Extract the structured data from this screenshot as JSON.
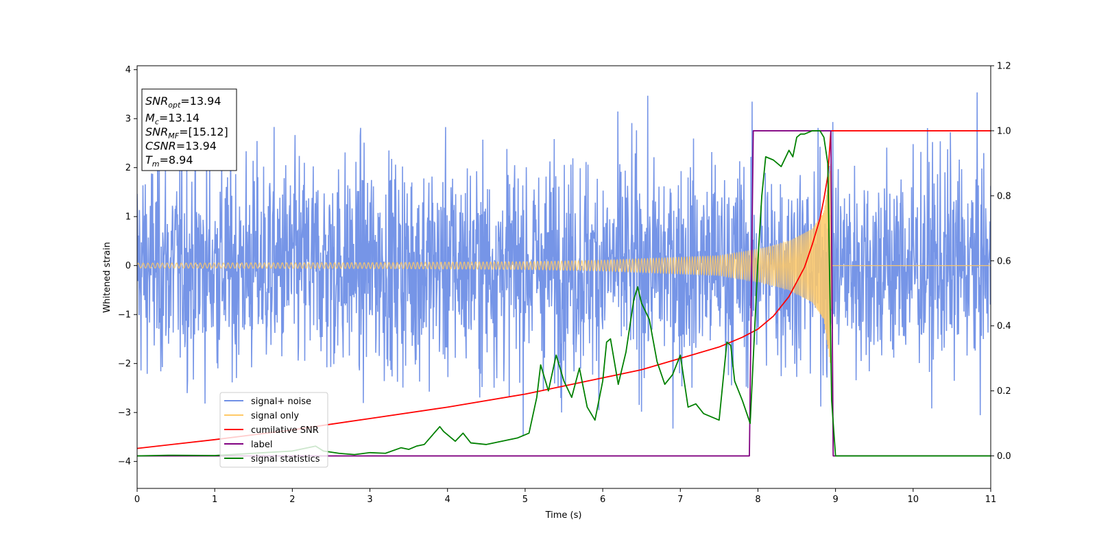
{
  "chart_data": {
    "type": "line",
    "xlabel": "Time (s)",
    "ylabel": "Whitened strain",
    "xlim": [
      0,
      11
    ],
    "ylim_left": [
      -4.55,
      4.08
    ],
    "ylim_right": [
      -0.1,
      1.2
    ],
    "x_ticks": [
      0,
      1,
      2,
      3,
      4,
      5,
      6,
      7,
      8,
      9,
      10,
      11
    ],
    "x_tick_labels": [
      "0",
      "1",
      "2",
      "3",
      "4",
      "5",
      "6",
      "7",
      "8",
      "9",
      "10",
      "11"
    ],
    "y_left_ticks": [
      4,
      3,
      2,
      1,
      0,
      -1,
      -2,
      -3,
      -4
    ],
    "y_left_tick_labels": [
      "4",
      "3",
      "2",
      "1",
      "0",
      "−1",
      "−2",
      "−3",
      "−4"
    ],
    "y_right_ticks": [
      1.2,
      1.0,
      0.8,
      0.6,
      0.4,
      0.2,
      0.0
    ],
    "y_right_tick_labels": [
      "1.2",
      "1.0",
      "0.8",
      "0.6",
      "0.4",
      "0.2",
      "0.0"
    ],
    "info_box": {
      "lines": [
        {
          "base": "SNR",
          "sub": "opt",
          "value": "=13.94"
        },
        {
          "base": "M",
          "sub": "c",
          "value": "=13.14"
        },
        {
          "base": "SNR",
          "sub": "MF",
          "value": "=[15.12]"
        },
        {
          "base": "CSNR",
          "sub": "",
          "value": "=13.94"
        },
        {
          "base": "T",
          "sub": "m",
          "value": "=8.94"
        }
      ]
    },
    "legend": {
      "placement": "lower-left",
      "entries": [
        {
          "label": "signal+ noise",
          "color": "#6f8fe6"
        },
        {
          "label": "signal only",
          "color": "#ffc966"
        },
        {
          "label": "cumilative SNR",
          "color": "#ff0000"
        },
        {
          "label": "label",
          "color": "#800080"
        },
        {
          "label": "signal statistics",
          "color": "#008000"
        }
      ]
    },
    "series": [
      {
        "name": "signal+ noise",
        "axis": "left",
        "color": "#6f8fe6",
        "description_kind": "noise",
        "sample_interval": 0.005,
        "sigma": 1.1,
        "range": [
          -4.1,
          3.7
        ]
      },
      {
        "name": "signal only",
        "axis": "left",
        "color": "#ffc966",
        "description_kind": "chirp",
        "amplitude_points": [
          [
            0,
            0.05
          ],
          [
            3,
            0.06
          ],
          [
            5,
            0.08
          ],
          [
            6,
            0.11
          ],
          [
            7,
            0.17
          ],
          [
            7.5,
            0.2
          ],
          [
            8,
            0.33
          ],
          [
            8.4,
            0.5
          ],
          [
            8.7,
            0.75
          ],
          [
            8.85,
            1.1
          ],
          [
            8.94,
            2.1
          ]
        ],
        "merger_time": 8.94
      },
      {
        "name": "cumilative SNR",
        "axis": "right",
        "color": "#ff0000",
        "x": [
          0,
          1,
          2,
          3,
          4,
          5,
          5.5,
          6,
          6.5,
          7,
          7.5,
          7.8,
          8.0,
          8.2,
          8.4,
          8.6,
          8.7,
          8.8,
          8.85,
          8.9,
          8.94,
          11
        ],
        "y": [
          0.023,
          0.05,
          0.08,
          0.115,
          0.15,
          0.19,
          0.215,
          0.24,
          0.265,
          0.3,
          0.335,
          0.365,
          0.39,
          0.43,
          0.49,
          0.58,
          0.65,
          0.73,
          0.79,
          0.86,
          1.0,
          1.0
        ]
      },
      {
        "name": "label",
        "axis": "right",
        "color": "#800080",
        "x": [
          0,
          7.89,
          7.94,
          8.94,
          8.97,
          11
        ],
        "y": [
          0,
          0,
          1,
          1,
          0,
          0
        ]
      },
      {
        "name": "signal statistics",
        "axis": "right",
        "color": "#008000",
        "x": [
          0,
          0.4,
          1.0,
          2.0,
          2.3,
          2.4,
          2.6,
          2.8,
          3.0,
          3.2,
          3.4,
          3.5,
          3.6,
          3.7,
          3.9,
          3.95,
          4.1,
          4.2,
          4.3,
          4.5,
          4.7,
          4.9,
          5.05,
          5.15,
          5.2,
          5.3,
          5.4,
          5.5,
          5.6,
          5.7,
          5.8,
          5.9,
          6.0,
          6.05,
          6.1,
          6.2,
          6.3,
          6.4,
          6.45,
          6.5,
          6.6,
          6.7,
          6.8,
          6.9,
          7.0,
          7.1,
          7.2,
          7.3,
          7.5,
          7.6,
          7.65,
          7.7,
          7.8,
          7.9,
          8.0,
          8.05,
          8.1,
          8.2,
          8.3,
          8.4,
          8.45,
          8.5,
          8.55,
          8.6,
          8.7,
          8.8,
          8.85,
          8.9,
          8.95,
          9.0,
          11
        ],
        "y": [
          0.0,
          0.002,
          0.001,
          0.015,
          0.03,
          0.015,
          0.008,
          0.004,
          0.01,
          0.008,
          0.025,
          0.02,
          0.03,
          0.035,
          0.09,
          0.075,
          0.045,
          0.07,
          0.04,
          0.035,
          0.045,
          0.055,
          0.07,
          0.18,
          0.28,
          0.2,
          0.31,
          0.23,
          0.18,
          0.27,
          0.15,
          0.11,
          0.23,
          0.35,
          0.36,
          0.22,
          0.32,
          0.48,
          0.52,
          0.47,
          0.42,
          0.29,
          0.22,
          0.25,
          0.31,
          0.15,
          0.16,
          0.13,
          0.11,
          0.35,
          0.34,
          0.23,
          0.17,
          0.1,
          0.6,
          0.8,
          0.92,
          0.91,
          0.89,
          0.94,
          0.92,
          0.98,
          0.99,
          0.99,
          1.0,
          1.0,
          0.98,
          0.9,
          0.17,
          0.0,
          0.0
        ]
      }
    ]
  }
}
